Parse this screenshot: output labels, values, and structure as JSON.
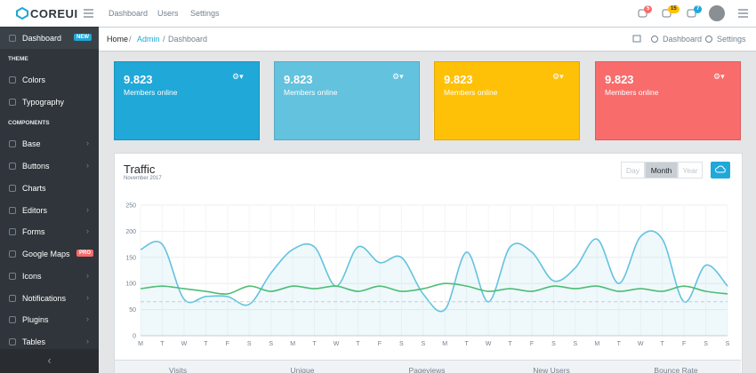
{
  "header": {
    "brand": "COREUI",
    "nav": [
      "Dashboard",
      "Users",
      "Settings"
    ],
    "badges": [
      "5",
      "15",
      "7"
    ]
  },
  "breadcrumb": {
    "items": [
      "Home",
      "Admin",
      "Dashboard"
    ],
    "actions": [
      "Dashboard",
      "Settings"
    ]
  },
  "sidebar": {
    "items": [
      {
        "label": "Dashboard",
        "badge": "NEW"
      },
      {
        "section": "THEME"
      },
      {
        "label": "Colors"
      },
      {
        "label": "Typography"
      },
      {
        "section": "COMPONENTS"
      },
      {
        "label": "Base"
      },
      {
        "label": "Buttons"
      },
      {
        "label": "Charts"
      },
      {
        "label": "Editors"
      },
      {
        "label": "Forms"
      },
      {
        "label": "Google Maps",
        "badge": "PRO"
      },
      {
        "label": "Icons"
      },
      {
        "label": "Notifications"
      },
      {
        "label": "Plugins"
      },
      {
        "label": "Tables"
      }
    ]
  },
  "cards": [
    {
      "value": "9.823",
      "label": "Members online",
      "color": "#20a8d8"
    },
    {
      "value": "9.823",
      "label": "Members online",
      "color": "#63c2de"
    },
    {
      "value": "9.823",
      "label": "Members online",
      "color": "#ffc107"
    },
    {
      "value": "9.823",
      "label": "Members online",
      "color": "#f86c6b"
    }
  ],
  "traffic": {
    "buttons": [
      "Day",
      "Month",
      "Year"
    ],
    "footer": [
      "Visits",
      "Unique",
      "Pageviews",
      "New Users",
      "Bounce Rate"
    ],
    "chart_data": {
      "type": "line",
      "title": "Traffic",
      "subtitle": "November 2017",
      "categories": [
        "M",
        "T",
        "W",
        "T",
        "F",
        "S",
        "S",
        "M",
        "T",
        "W",
        "T",
        "F",
        "S",
        "S",
        "M",
        "T",
        "W",
        "T",
        "F",
        "S",
        "S",
        "M",
        "T",
        "W",
        "T",
        "F",
        "S",
        "S"
      ],
      "ylim": [
        0,
        250
      ],
      "yticks": [
        0,
        50,
        100,
        150,
        200,
        250
      ],
      "grid": true,
      "series": [
        {
          "color": "#63c2de",
          "fill": true,
          "values": [
            165,
            175,
            70,
            75,
            75,
            60,
            120,
            165,
            170,
            95,
            170,
            140,
            150,
            80,
            50,
            160,
            65,
            170,
            160,
            105,
            130,
            185,
            100,
            190,
            185,
            65,
            135,
            95
          ]
        },
        {
          "color": "#4dbd74",
          "values": [
            90,
            95,
            90,
            85,
            80,
            95,
            85,
            95,
            90,
            95,
            85,
            95,
            85,
            90,
            100,
            95,
            85,
            90,
            85,
            95,
            90,
            95,
            85,
            90,
            85,
            95,
            85,
            80
          ]
        },
        {
          "color": "#c5cdd6",
          "dashed": true,
          "values": [
            65,
            65,
            65,
            65,
            65,
            65,
            65,
            65,
            65,
            65,
            65,
            65,
            65,
            65,
            65,
            65,
            65,
            65,
            65,
            65,
            65,
            65,
            65,
            65,
            65,
            65,
            65,
            65
          ]
        }
      ]
    }
  }
}
